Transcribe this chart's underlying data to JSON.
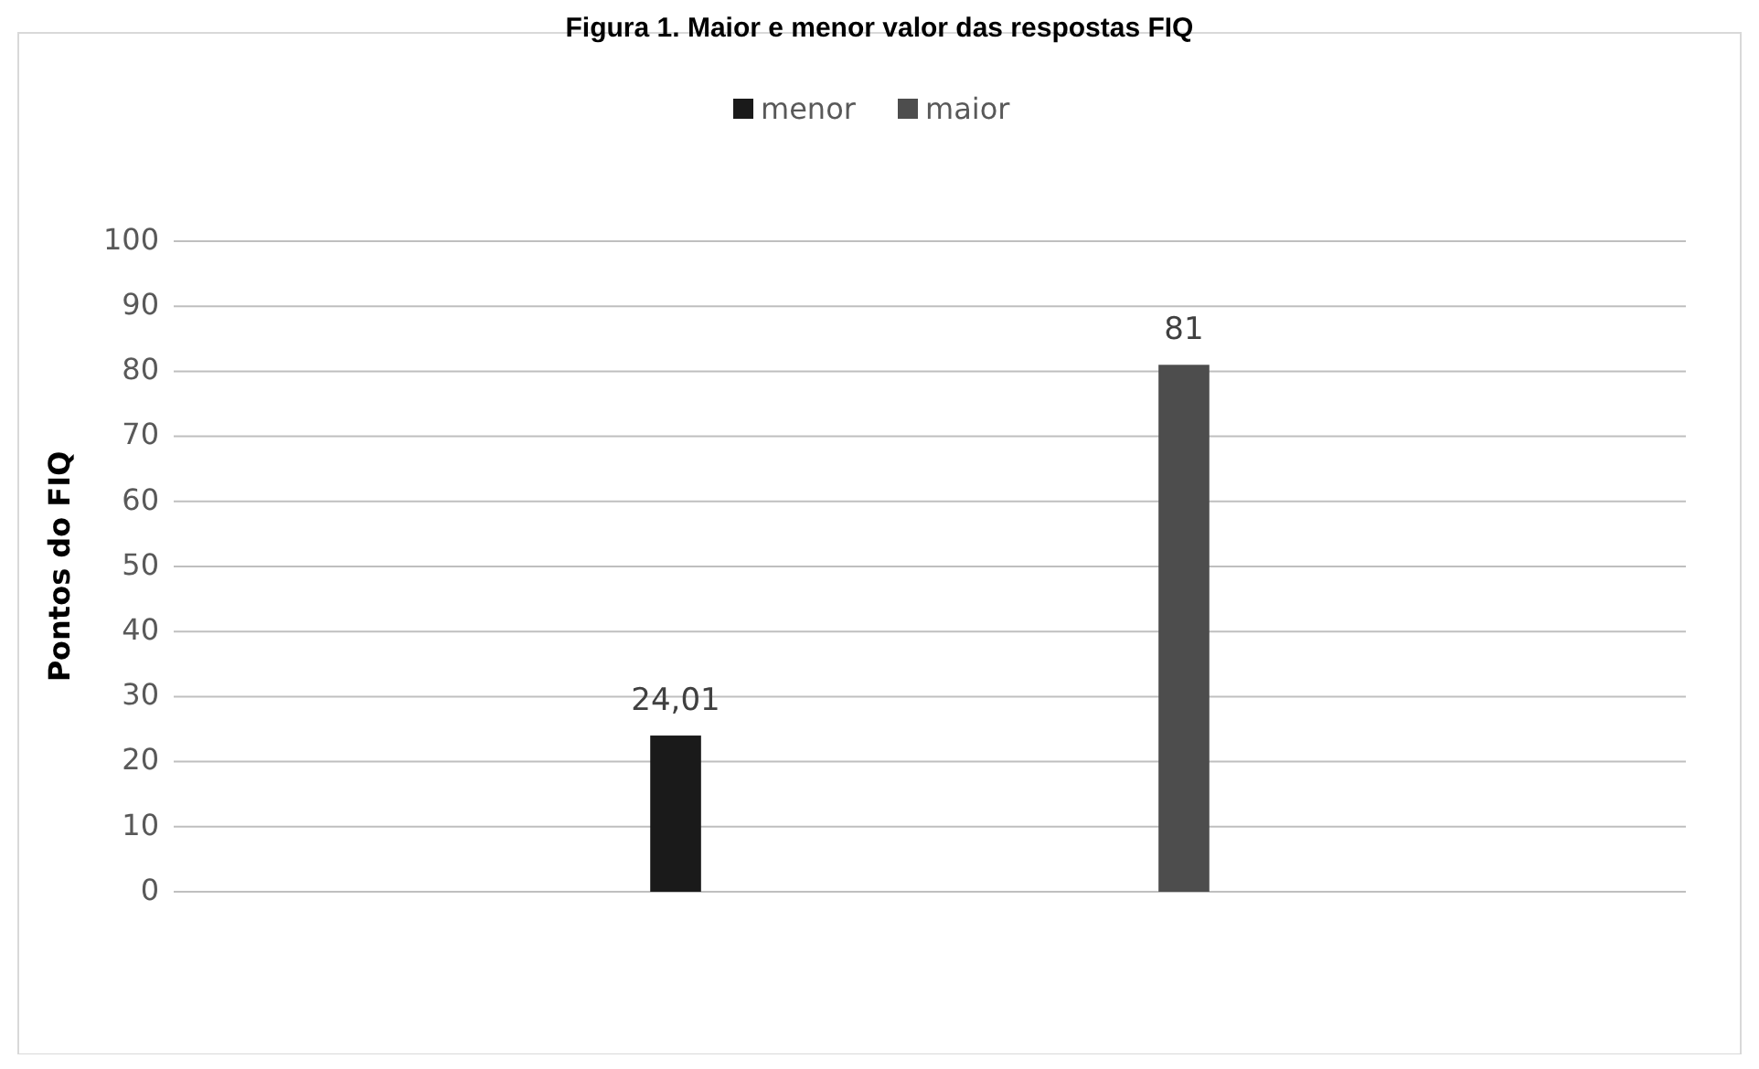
{
  "chart_data": {
    "type": "bar",
    "title": "Figura 1. Maior e menor valor das respostas FIQ",
    "ylabel": "Pontos do FIQ",
    "categories": [
      null
    ],
    "series": [
      {
        "name": "menor",
        "color": "#1a1a1a",
        "values": [
          24.01
        ],
        "value_labels": [
          "24,01"
        ]
      },
      {
        "name": "maior",
        "color": "#4d4d4d",
        "values": [
          81
        ],
        "value_labels": [
          "81"
        ]
      }
    ],
    "ylim": [
      0,
      100
    ],
    "yticks": [
      0,
      10,
      20,
      30,
      40,
      50,
      60,
      70,
      80,
      90,
      100
    ],
    "grid": "y",
    "legend": "top"
  }
}
